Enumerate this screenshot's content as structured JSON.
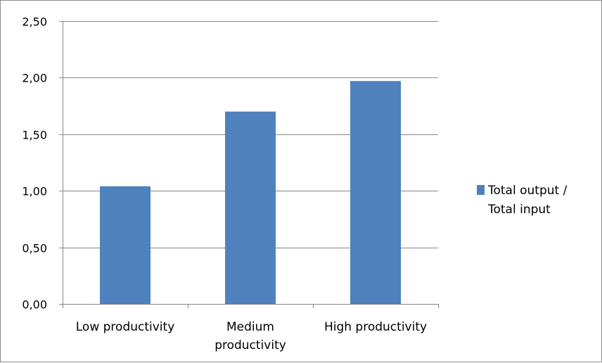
{
  "chart_data": {
    "type": "bar",
    "categories": [
      "Low productivity",
      "Medium productivity",
      "High productivity"
    ],
    "category_label_lines": [
      [
        "Low productivity"
      ],
      [
        "Medium",
        "productivity"
      ],
      [
        "High productivity"
      ]
    ],
    "series": [
      {
        "name": "Total output / Total input",
        "name_lines": [
          "Total output /",
          "Total input"
        ],
        "values": [
          1.04,
          1.7,
          1.97
        ],
        "color": "#4f81bd"
      }
    ],
    "y_ticks": [
      "0,00",
      "0,50",
      "1,00",
      "1,50",
      "2,00",
      "2,50"
    ],
    "ylim": [
      0,
      2.5
    ],
    "grid": true,
    "legend_position": "right",
    "title": "",
    "xlabel": "",
    "ylabel": ""
  }
}
